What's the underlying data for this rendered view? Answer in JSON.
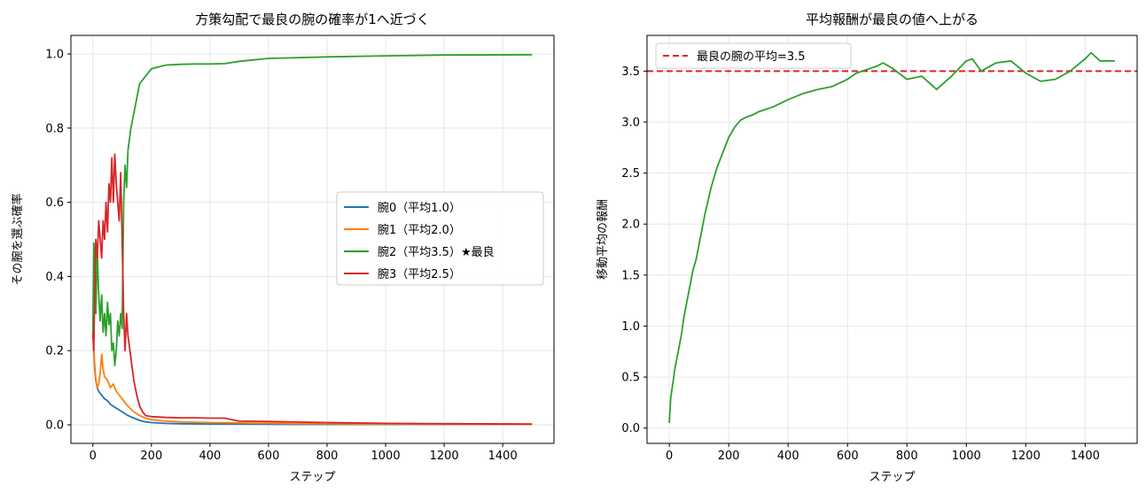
{
  "chart_data": [
    {
      "type": "line",
      "title": "方策勾配で最良の腕の確率が1へ近づく",
      "xlabel": "ステップ",
      "ylabel": "その腕を選ぶ確率",
      "xlim": [
        -75,
        1575
      ],
      "ylim": [
        -0.05,
        1.05
      ],
      "xticks": [
        0,
        200,
        400,
        600,
        800,
        1000,
        1200,
        1400
      ],
      "yticks": [
        0.0,
        0.2,
        0.4,
        0.6,
        0.8,
        1.0
      ],
      "grid": true,
      "legend_position": "center-right",
      "series": [
        {
          "name": "腕0（平均1.0）",
          "color": "#1f77b4",
          "x": [
            0,
            3,
            6,
            10,
            15,
            20,
            25,
            30,
            40,
            50,
            60,
            70,
            80,
            90,
            100,
            120,
            140,
            160,
            180,
            200,
            250,
            300,
            400,
            500,
            700,
            1000,
            1500
          ],
          "y": [
            0.25,
            0.2,
            0.15,
            0.12,
            0.1,
            0.09,
            0.085,
            0.08,
            0.07,
            0.065,
            0.055,
            0.05,
            0.045,
            0.04,
            0.035,
            0.025,
            0.018,
            0.012,
            0.008,
            0.006,
            0.004,
            0.003,
            0.002,
            0.002,
            0.001,
            0.001,
            0.001
          ]
        },
        {
          "name": "腕1（平均2.0）",
          "color": "#ff7f0e",
          "x": [
            0,
            5,
            10,
            15,
            20,
            25,
            30,
            35,
            40,
            50,
            60,
            70,
            80,
            90,
            100,
            120,
            140,
            160,
            180,
            200,
            250,
            300,
            400,
            500,
            700,
            1000,
            1500
          ],
          "y": [
            0.25,
            0.18,
            0.12,
            0.1,
            0.11,
            0.14,
            0.19,
            0.15,
            0.13,
            0.12,
            0.1,
            0.11,
            0.09,
            0.08,
            0.07,
            0.05,
            0.035,
            0.025,
            0.018,
            0.014,
            0.01,
            0.008,
            0.006,
            0.005,
            0.003,
            0.002,
            0.001
          ]
        },
        {
          "name": "腕2（平均3.5）★最良",
          "color": "#2ca02c",
          "x": [
            0,
            3,
            6,
            10,
            15,
            20,
            25,
            30,
            35,
            40,
            45,
            50,
            55,
            60,
            65,
            70,
            75,
            80,
            85,
            90,
            95,
            100,
            105,
            110,
            115,
            120,
            130,
            140,
            150,
            160,
            170,
            180,
            190,
            200,
            250,
            300,
            350,
            400,
            450,
            500,
            600,
            800,
            1000,
            1200,
            1500
          ],
          "y": [
            0.25,
            0.49,
            0.45,
            0.3,
            0.47,
            0.35,
            0.28,
            0.35,
            0.25,
            0.3,
            0.24,
            0.33,
            0.27,
            0.3,
            0.2,
            0.22,
            0.16,
            0.2,
            0.28,
            0.24,
            0.3,
            0.26,
            0.6,
            0.7,
            0.64,
            0.74,
            0.8,
            0.84,
            0.88,
            0.92,
            0.93,
            0.94,
            0.95,
            0.96,
            0.97,
            0.972,
            0.973,
            0.973,
            0.974,
            0.98,
            0.988,
            0.992,
            0.995,
            0.997,
            0.998
          ]
        },
        {
          "name": "腕3（平均2.5）",
          "color": "#d62728",
          "x": [
            0,
            3,
            6,
            10,
            15,
            20,
            25,
            30,
            35,
            40,
            45,
            50,
            55,
            60,
            65,
            70,
            75,
            80,
            85,
            90,
            95,
            100,
            105,
            110,
            115,
            120,
            130,
            140,
            150,
            160,
            170,
            180,
            200,
            250,
            300,
            350,
            400,
            450,
            500,
            600,
            800,
            1000,
            1200,
            1500
          ],
          "y": [
            0.25,
            0.2,
            0.35,
            0.5,
            0.45,
            0.55,
            0.5,
            0.45,
            0.55,
            0.5,
            0.6,
            0.52,
            0.65,
            0.6,
            0.72,
            0.6,
            0.73,
            0.65,
            0.6,
            0.55,
            0.68,
            0.5,
            0.3,
            0.2,
            0.3,
            0.24,
            0.18,
            0.12,
            0.08,
            0.05,
            0.035,
            0.025,
            0.022,
            0.02,
            0.019,
            0.019,
            0.018,
            0.018,
            0.01,
            0.009,
            0.006,
            0.004,
            0.003,
            0.002
          ]
        }
      ]
    },
    {
      "type": "line",
      "title": "平均報酬が最良の値へ上がる",
      "xlabel": "ステップ",
      "ylabel": "移動平均の報酬",
      "xlim": [
        -75,
        1575
      ],
      "ylim": [
        -0.15,
        3.85
      ],
      "xticks": [
        0,
        200,
        400,
        600,
        800,
        1000,
        1200,
        1400
      ],
      "yticks": [
        0.0,
        0.5,
        1.0,
        1.5,
        2.0,
        2.5,
        3.0,
        3.5
      ],
      "grid": true,
      "legend_position": "top-left",
      "hline": {
        "name": "最良の腕の平均=3.5",
        "y": 3.5,
        "color": "#d62728",
        "style": "dashed"
      },
      "series": [
        {
          "name": "",
          "color": "#2ca02c",
          "x": [
            0,
            5,
            10,
            20,
            30,
            40,
            50,
            60,
            70,
            80,
            90,
            100,
            120,
            140,
            160,
            180,
            200,
            220,
            240,
            260,
            280,
            300,
            350,
            400,
            450,
            500,
            550,
            600,
            630,
            650,
            700,
            720,
            750,
            800,
            850,
            900,
            950,
            1000,
            1020,
            1050,
            1100,
            1150,
            1200,
            1250,
            1300,
            1350,
            1400,
            1420,
            1450,
            1500
          ],
          "y": [
            0.05,
            0.3,
            0.4,
            0.6,
            0.75,
            0.9,
            1.1,
            1.25,
            1.4,
            1.55,
            1.65,
            1.8,
            2.1,
            2.35,
            2.55,
            2.7,
            2.85,
            2.95,
            3.02,
            3.05,
            3.07,
            3.1,
            3.15,
            3.22,
            3.28,
            3.32,
            3.35,
            3.42,
            3.48,
            3.5,
            3.55,
            3.58,
            3.53,
            3.42,
            3.45,
            3.32,
            3.45,
            3.6,
            3.62,
            3.5,
            3.58,
            3.6,
            3.48,
            3.4,
            3.42,
            3.5,
            3.62,
            3.68,
            3.6,
            3.6
          ]
        }
      ]
    }
  ]
}
